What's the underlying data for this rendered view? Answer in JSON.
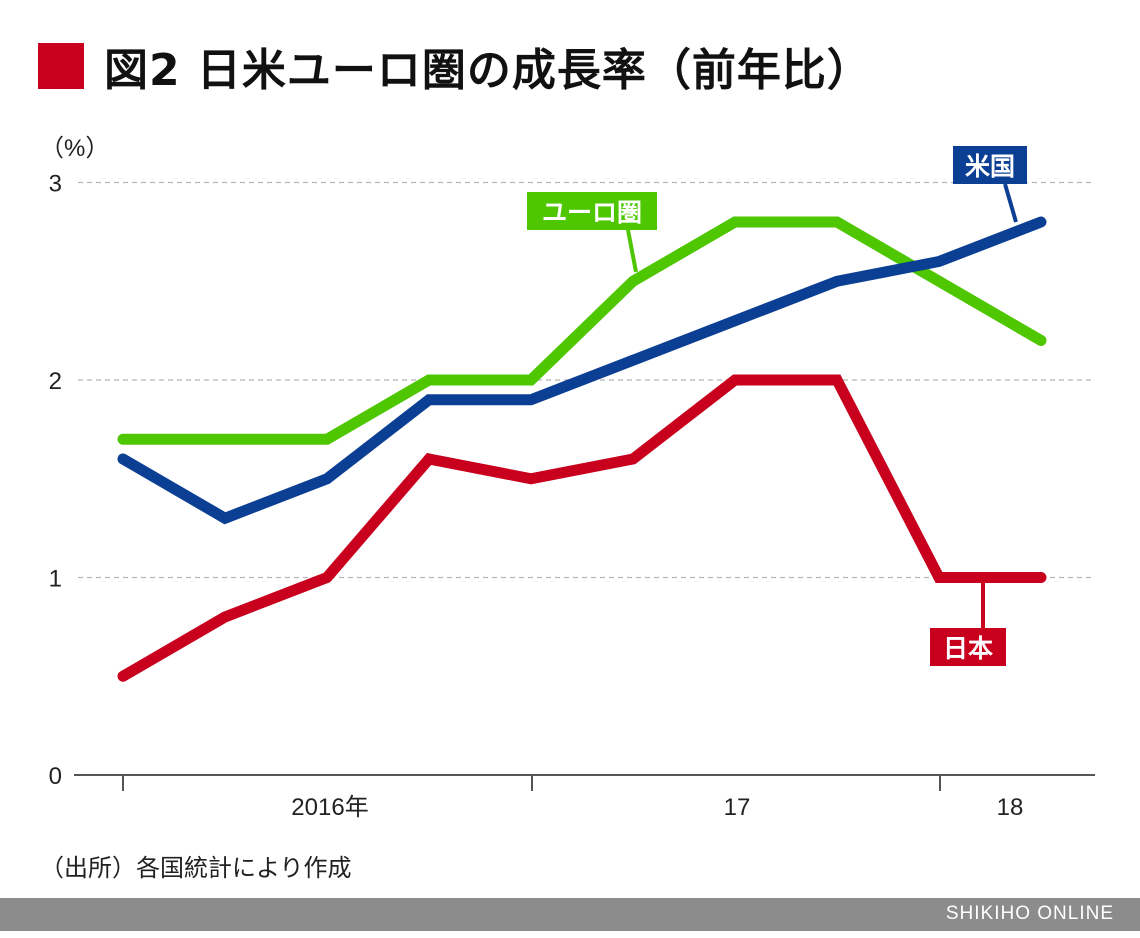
{
  "title": "図2 日米ユーロ圏の成長率（前年比）",
  "source": "（出所）各国統計により作成",
  "footer": "SHIKIHO ONLINE",
  "chart_data": {
    "type": "line",
    "title": "図2 日米ユーロ圏の成長率（前年比）",
    "ylabel": "（%）",
    "ylim": [
      0,
      3
    ],
    "yticks": [
      "0",
      "1",
      "2",
      "3"
    ],
    "xtick_labels": [
      "2016年",
      "17",
      "18"
    ],
    "grid": true,
    "x": [
      1,
      2,
      3,
      4,
      5,
      6,
      7,
      8,
      9,
      10
    ],
    "series": [
      {
        "name": "日本",
        "color": "#c8001e",
        "values": [
          0.5,
          0.8,
          1.0,
          1.6,
          1.5,
          1.6,
          2.0,
          2.0,
          1.0,
          1.0
        ]
      },
      {
        "name": "米国",
        "color": "#0b3f93",
        "values": [
          1.6,
          1.3,
          1.5,
          1.9,
          1.9,
          2.1,
          2.3,
          2.5,
          2.6,
          2.8
        ]
      },
      {
        "name": "ユーロ圏",
        "color": "#4ec600",
        "values": [
          1.7,
          1.7,
          1.7,
          2.0,
          2.0,
          2.5,
          2.8,
          2.8,
          2.5,
          2.2
        ]
      }
    ]
  }
}
